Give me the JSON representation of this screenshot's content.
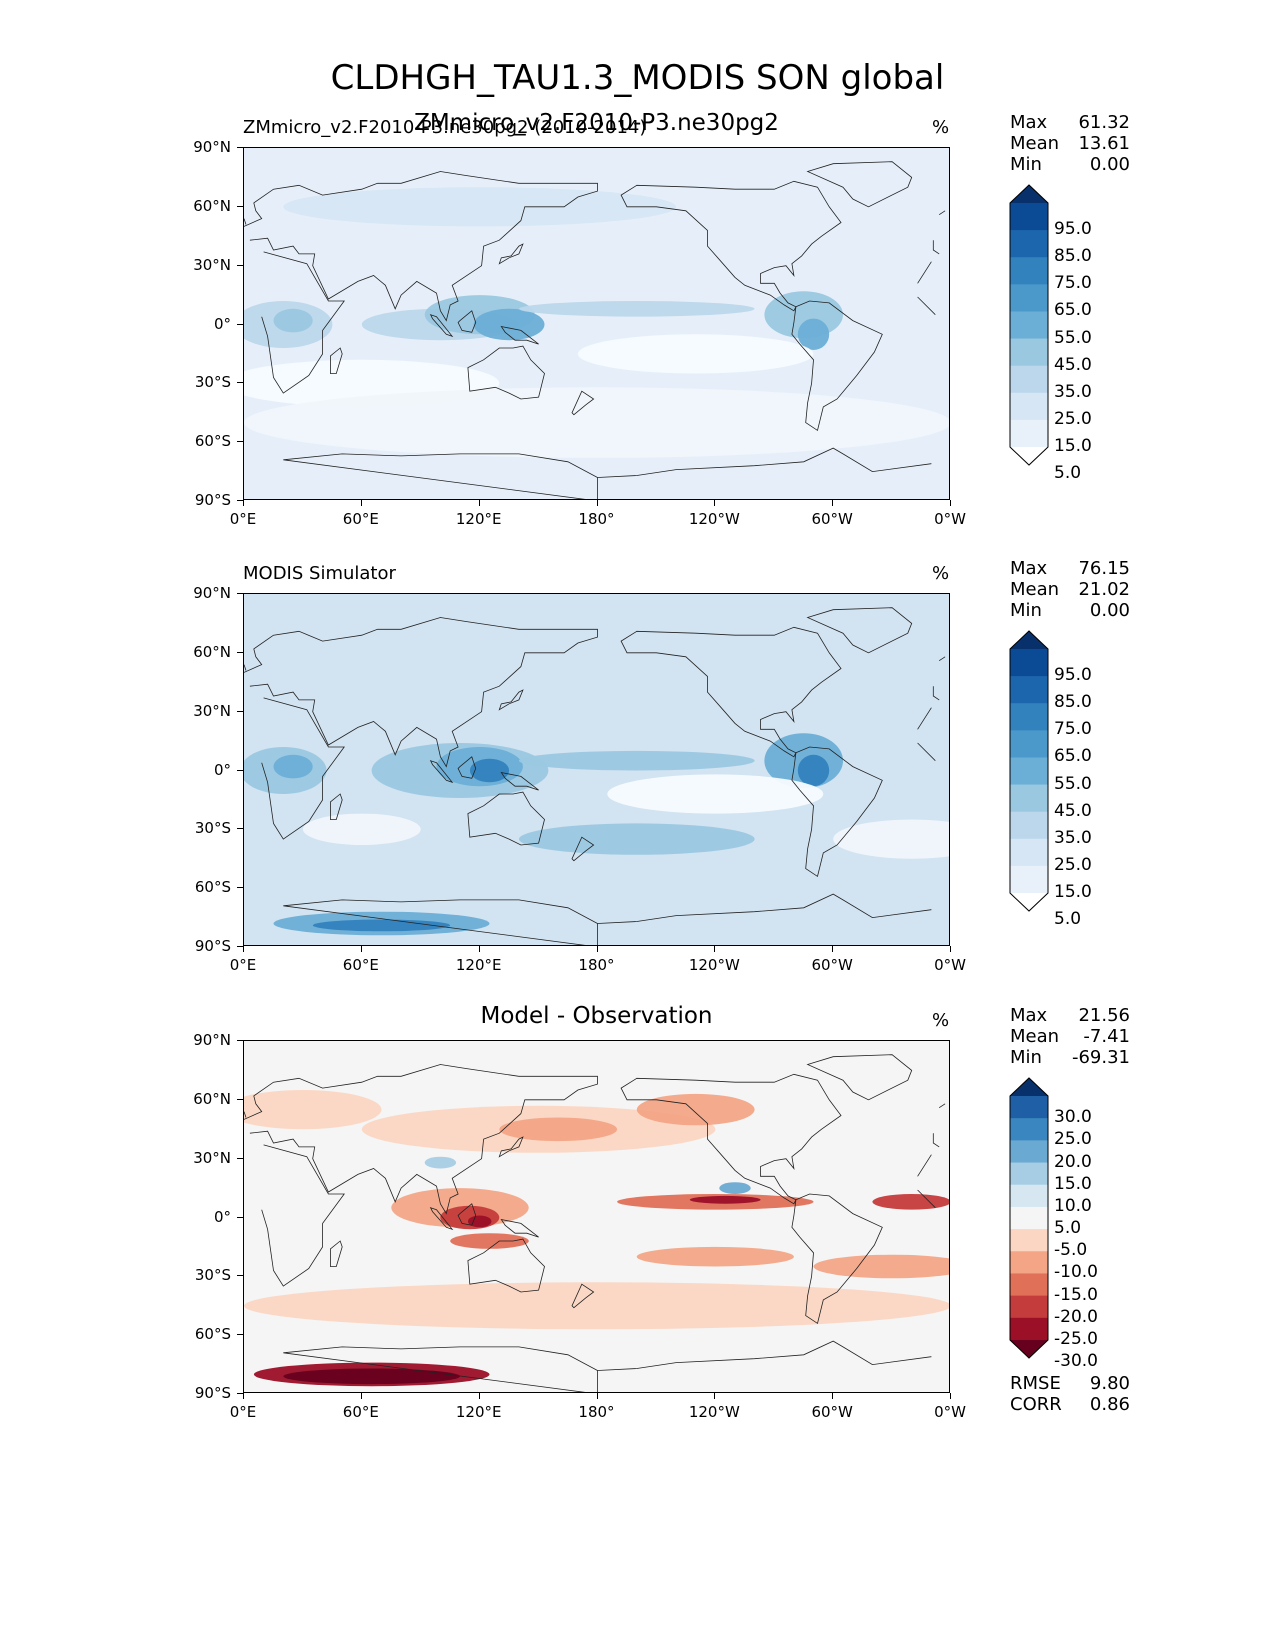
{
  "figure_title": "CLDHGH_TAU1.3_MODIS SON global",
  "panels": [
    {
      "left_title": "ZMmicro_v2.F2010-P3.ne30pg2 (2010-2014)",
      "center_title": "ZMmicro_v2.F2010-P3.ne30pg2",
      "units": "%",
      "stats": [
        {
          "label": "Max",
          "value": "61.32"
        },
        {
          "label": "Mean",
          "value": "13.61"
        },
        {
          "label": "Min",
          "value": "0.00"
        }
      ],
      "colorbar": {
        "levels": [
          "95.0",
          "85.0",
          "75.0",
          "65.0",
          "55.0",
          "45.0",
          "35.0",
          "25.0",
          "15.0",
          "5.0"
        ],
        "colors_top_to_bottom": [
          "#08306b",
          "#0b4a94",
          "#1c66ad",
          "#3282be",
          "#4b98ca",
          "#6baed6",
          "#9ac8e0",
          "#bcd7eb",
          "#d6e6f4",
          "#e8f1fa",
          "#ffffff"
        ]
      }
    },
    {
      "left_title": "MODIS Simulator",
      "center_title": "",
      "units": "%",
      "stats": [
        {
          "label": "Max",
          "value": "76.15"
        },
        {
          "label": "Mean",
          "value": "21.02"
        },
        {
          "label": "Min",
          "value": "0.00"
        }
      ],
      "colorbar": {
        "levels": [
          "95.0",
          "85.0",
          "75.0",
          "65.0",
          "55.0",
          "45.0",
          "35.0",
          "25.0",
          "15.0",
          "5.0"
        ],
        "colors_top_to_bottom": [
          "#08306b",
          "#0b4a94",
          "#1c66ad",
          "#3282be",
          "#4b98ca",
          "#6baed6",
          "#9ac8e0",
          "#bcd7eb",
          "#d6e6f4",
          "#e8f1fa",
          "#ffffff"
        ]
      }
    },
    {
      "left_title": "",
      "center_title": "Model - Observation",
      "units": "%",
      "stats": [
        {
          "label": "Max",
          "value": "21.56"
        },
        {
          "label": "Mean",
          "value": "-7.41"
        },
        {
          "label": "Min",
          "value": "-69.31"
        }
      ],
      "colorbar": {
        "levels": [
          "30.0",
          "25.0",
          "20.0",
          "15.0",
          "10.0",
          "5.0",
          "-5.0",
          "-10.0",
          "-15.0",
          "-20.0",
          "-25.0",
          "-30.0"
        ],
        "colors_top_to_bottom": [
          "#08306b",
          "#1f5fa6",
          "#3a86c0",
          "#6aa9d2",
          "#a7cde4",
          "#d6e7f1",
          "#f5f5f5",
          "#fbd6c2",
          "#f3a586",
          "#e07058",
          "#c43c3b",
          "#9b0f27",
          "#67001f"
        ]
      },
      "footer_stats": [
        {
          "label": "RMSE",
          "value": "9.80"
        },
        {
          "label": "CORR",
          "value": "0.86"
        }
      ]
    }
  ],
  "axes": {
    "yticks": [
      "90°N",
      "60°N",
      "30°N",
      "0°",
      "30°S",
      "60°S",
      "90°S"
    ],
    "xticks": [
      "0°E",
      "60°E",
      "120°E",
      "180°",
      "120°W",
      "60°W",
      "0°W"
    ]
  },
  "chart_data": [
    {
      "type": "heatmap",
      "title": "ZMmicro_v2.F2010-P3.ne30pg2",
      "subtitle": "ZMmicro_v2.F2010-P3.ne30pg2 (2010-2014)",
      "units": "%",
      "xlim": [
        0,
        360
      ],
      "ylim": [
        -90,
        90
      ],
      "max": 61.32,
      "mean": 13.61,
      "min": 0.0,
      "contour_levels": [
        5,
        15,
        25,
        35,
        45,
        55,
        65,
        75,
        85,
        95
      ],
      "colormap": "Blues"
    },
    {
      "type": "heatmap",
      "title": "MODIS Simulator",
      "units": "%",
      "xlim": [
        0,
        360
      ],
      "ylim": [
        -90,
        90
      ],
      "max": 76.15,
      "mean": 21.02,
      "min": 0.0,
      "contour_levels": [
        5,
        15,
        25,
        35,
        45,
        55,
        65,
        75,
        85,
        95
      ],
      "colormap": "Blues"
    },
    {
      "type": "heatmap",
      "title": "Model - Observation",
      "units": "%",
      "xlim": [
        0,
        360
      ],
      "ylim": [
        -90,
        90
      ],
      "max": 21.56,
      "mean": -7.41,
      "min": -69.31,
      "rmse": 9.8,
      "corr": 0.86,
      "contour_levels": [
        -30,
        -25,
        -20,
        -15,
        -10,
        -5,
        5,
        10,
        15,
        20,
        25,
        30
      ],
      "colormap": "RdBu_r"
    }
  ]
}
